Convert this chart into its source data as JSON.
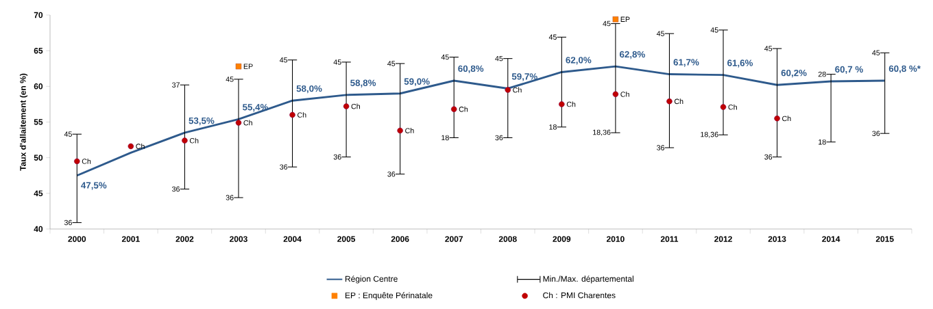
{
  "chart_data": {
    "type": "line",
    "ylabel": "Taux d'allaitement (en %)",
    "categories": [
      "2000",
      "2001",
      "2002",
      "2003",
      "2004",
      "2005",
      "2006",
      "2007",
      "2008",
      "2009",
      "2010",
      "2011",
      "2012",
      "2013",
      "2014",
      "2015"
    ],
    "ylim": [
      40,
      70
    ],
    "yticks": [
      40,
      45,
      50,
      55,
      60,
      65,
      70
    ],
    "legend": "bottom",
    "series": [
      {
        "name": "Région Centre",
        "type": "line",
        "color": "#2e5a8c",
        "marker": "none",
        "values": [
          47.5,
          50.7,
          53.5,
          55.4,
          58.0,
          58.8,
          59.0,
          60.8,
          59.7,
          62.0,
          62.8,
          61.7,
          61.6,
          60.2,
          60.7,
          60.8
        ],
        "value_labels": [
          "47,5%",
          null,
          "53,5%",
          "55,4%",
          "58,0%",
          "58,8%",
          "59,0%",
          "60,8%",
          "59,7%",
          "62,0%",
          "62,8%",
          "61,7%",
          "61,6%",
          "60,2%",
          "60,7 %",
          "60,8 %*"
        ],
        "errors": [
          [
            40.9,
            53.3
          ],
          null,
          [
            45.6,
            60.2
          ],
          [
            44.4,
            61.0
          ],
          [
            48.7,
            63.7
          ],
          [
            50.1,
            63.4
          ],
          [
            47.7,
            63.2
          ],
          [
            52.8,
            64.1
          ],
          [
            52.8,
            63.9
          ],
          [
            54.3,
            66.9
          ],
          [
            53.5,
            68.8
          ],
          [
            51.4,
            67.4
          ],
          [
            53.2,
            67.9
          ],
          [
            50.1,
            65.3
          ],
          [
            52.2,
            61.7
          ],
          [
            53.4,
            64.7
          ]
        ]
      },
      {
        "name": "Min./Max. départemental",
        "type": "line",
        "color": "#000000",
        "values": [
          null,
          null,
          null,
          null,
          null,
          null,
          null,
          null,
          null,
          null,
          null,
          null,
          null,
          null,
          null,
          null
        ]
      },
      {
        "name": "EP : Enquête Périnatale",
        "type": "scatter",
        "color": "#ff8000",
        "marker": "square",
        "values": [
          null,
          null,
          null,
          62.8,
          null,
          null,
          null,
          null,
          null,
          null,
          69.4,
          null,
          null,
          null,
          null,
          null
        ]
      },
      {
        "name": "Ch : PMI Charentes",
        "type": "scatter",
        "color": "#c00000",
        "marker": "circle",
        "values": [
          49.5,
          51.6,
          52.4,
          54.9,
          56.0,
          57.2,
          53.8,
          56.8,
          59.5,
          57.5,
          58.9,
          57.9,
          57.1,
          55.5,
          null,
          null
        ]
      }
    ],
    "annotations": [
      {
        "text": "45",
        "x": "2000",
        "y": 53.3
      },
      {
        "text": "36",
        "x": "2000",
        "y": 40.9
      },
      {
        "text": "37",
        "x": "2002",
        "y": 60.2
      },
      {
        "text": "36",
        "x": "2002",
        "y": 45.6
      },
      {
        "text": "45",
        "x": "2003",
        "y": 61.0
      },
      {
        "text": "36",
        "x": "2003",
        "y": 44.4
      },
      {
        "text": "45",
        "x": "2004",
        "y": 63.7
      },
      {
        "text": "36",
        "x": "2004",
        "y": 48.7
      },
      {
        "text": "45",
        "x": "2005",
        "y": 63.4
      },
      {
        "text": "36",
        "x": "2005",
        "y": 50.1
      },
      {
        "text": "45",
        "x": "2006",
        "y": 63.2
      },
      {
        "text": "36",
        "x": "2006",
        "y": 47.7
      },
      {
        "text": "45",
        "x": "2007",
        "y": 64.1
      },
      {
        "text": "18",
        "x": "2007",
        "y": 52.8
      },
      {
        "text": "45",
        "x": "2008",
        "y": 63.9
      },
      {
        "text": "36",
        "x": "2008",
        "y": 52.8
      },
      {
        "text": "45",
        "x": "2009",
        "y": 66.9
      },
      {
        "text": "18",
        "x": "2009",
        "y": 54.3
      },
      {
        "text": "45",
        "x": "2010",
        "y": 68.8
      },
      {
        "text": "18,36",
        "x": "2010",
        "y": 53.5
      },
      {
        "text": "45",
        "x": "2011",
        "y": 67.4
      },
      {
        "text": "36",
        "x": "2011",
        "y": 51.4
      },
      {
        "text": "45",
        "x": "2012",
        "y": 67.9
      },
      {
        "text": "18,36",
        "x": "2012",
        "y": 53.2
      },
      {
        "text": "45",
        "x": "2013",
        "y": 65.3
      },
      {
        "text": "36",
        "x": "2013",
        "y": 50.1
      },
      {
        "text": "28",
        "x": "2014",
        "y": 61.7
      },
      {
        "text": "18",
        "x": "2014",
        "y": 52.2
      },
      {
        "text": "45",
        "x": "2015",
        "y": 64.7
      },
      {
        "text": "36",
        "x": "2015",
        "y": 53.4
      },
      {
        "text": "EP",
        "x": "2003",
        "y": 62.8
      },
      {
        "text": "EP",
        "x": "2010",
        "y": 69.4
      },
      {
        "text": "Ch",
        "x": "2000",
        "y": 49.5
      },
      {
        "text": "Ch",
        "x": "2001",
        "y": 51.6
      },
      {
        "text": "Ch",
        "x": "2002",
        "y": 52.4
      },
      {
        "text": "Ch",
        "x": "2003",
        "y": 54.9
      },
      {
        "text": "Ch",
        "x": "2004",
        "y": 56.0
      },
      {
        "text": "Ch",
        "x": "2005",
        "y": 57.2
      },
      {
        "text": "Ch",
        "x": "2006",
        "y": 53.8
      },
      {
        "text": "Ch",
        "x": "2007",
        "y": 56.8
      },
      {
        "text": "Ch",
        "x": "2008",
        "y": 59.5
      },
      {
        "text": "Ch",
        "x": "2009",
        "y": 57.5
      },
      {
        "text": "Ch",
        "x": "2010",
        "y": 58.9
      },
      {
        "text": "Ch",
        "x": "2011",
        "y": 57.9
      },
      {
        "text": "Ch",
        "x": "2012",
        "y": 57.1
      },
      {
        "text": "Ch",
        "x": "2013",
        "y": 55.5
      }
    ]
  }
}
